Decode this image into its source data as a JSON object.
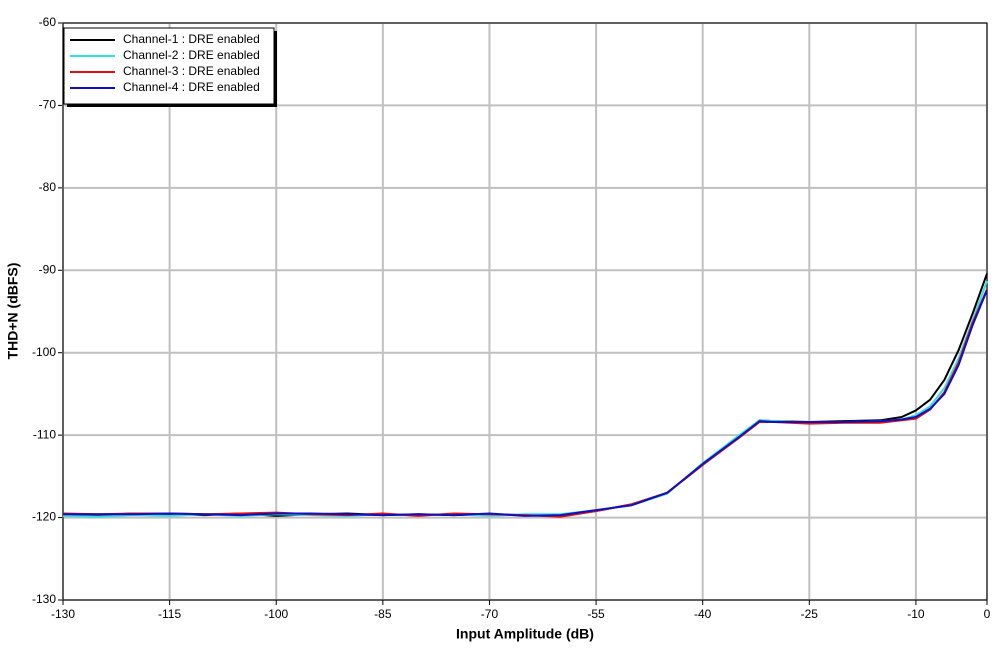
{
  "chart_data": {
    "type": "line",
    "x_label": "Input Amplitude (dB)",
    "y_label": "THD+N (dBFS)",
    "x": [
      -130,
      -125,
      -120,
      -115,
      -110,
      -105,
      -100,
      -95,
      -90,
      -85,
      -80,
      -75,
      -70,
      -65,
      -60,
      -55,
      -50,
      -45,
      -40,
      -35,
      -32,
      -30,
      -25,
      -20,
      -15,
      -12,
      -10,
      -8,
      -6,
      -4,
      -2,
      0
    ],
    "series": [
      {
        "name": "Channel-1 : DRE enabled",
        "color": "#000000",
        "values": [
          -119.6,
          -119.7,
          -119.5,
          -119.6,
          -119.7,
          -119.5,
          -119.8,
          -119.6,
          -119.5,
          -119.7,
          -119.6,
          -119.7,
          -119.6,
          -119.7,
          -119.8,
          -119.2,
          -118.4,
          -117,
          -113.6,
          -110.3,
          -108.2,
          -108.3,
          -108.4,
          -108.3,
          -108.2,
          -107.8,
          -107.0,
          -105.7,
          -103.3,
          -99.7,
          -95.2,
          -90.4
        ]
      },
      {
        "name": "Channel-2 : DRE enabled",
        "color": "#33e0e0",
        "values": [
          -119.8,
          -119.9,
          -119.7,
          -119.8,
          -119.6,
          -119.8,
          -119.6,
          -119.7,
          -119.8,
          -119.6,
          -119.7,
          -119.6,
          -119.8,
          -119.6,
          -119.6,
          -119.1,
          -118.5,
          -117.1,
          -113.4,
          -110.1,
          -108.2,
          -108.3,
          -108.5,
          -108.4,
          -108.3,
          -108.1,
          -107.6,
          -106.5,
          -104.3,
          -100.7,
          -96,
          -91.3
        ]
      },
      {
        "name": "Channel-3 : DRE enabled",
        "color": "#e01010",
        "values": [
          -119.5,
          -119.6,
          -119.5,
          -119.5,
          -119.6,
          -119.5,
          -119.4,
          -119.6,
          -119.7,
          -119.5,
          -119.8,
          -119.5,
          -119.6,
          -119.7,
          -119.9,
          -119.2,
          -118.4,
          -117,
          -113.6,
          -110.4,
          -108.4,
          -108.4,
          -108.6,
          -108.5,
          -108.5,
          -108.2,
          -108,
          -106.9,
          -104.8,
          -101.2,
          -96.3,
          -92.3
        ]
      },
      {
        "name": "Channel-4 : DRE enabled",
        "color": "#1010c0",
        "values": [
          -119.6,
          -119.6,
          -119.6,
          -119.5,
          -119.6,
          -119.7,
          -119.5,
          -119.5,
          -119.6,
          -119.7,
          -119.6,
          -119.7,
          -119.5,
          -119.8,
          -119.7,
          -119.1,
          -118.5,
          -117,
          -113.5,
          -110.3,
          -108.3,
          -108.4,
          -108.4,
          -108.4,
          -108.3,
          -108.1,
          -107.8,
          -106.8,
          -105,
          -101.5,
          -96.6,
          -92.4
        ]
      }
    ],
    "xlim": [
      -130,
      0
    ],
    "xticks": [
      -130,
      -115,
      -100,
      -85,
      -70,
      -55,
      -40,
      -25,
      -10,
      0
    ],
    "ylim": [
      -130,
      -60
    ],
    "yticks": [
      -130,
      -120,
      -110,
      -100,
      -90,
      -80,
      -70,
      -60
    ],
    "grid": true,
    "legend": "upper left"
  }
}
